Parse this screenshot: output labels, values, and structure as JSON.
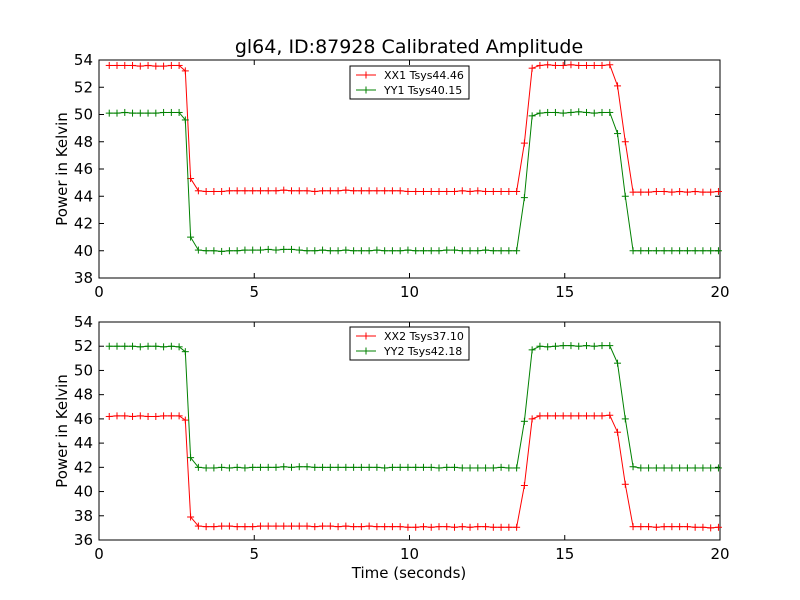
{
  "figure": {
    "title": "gl64, ID:87928 Calibrated Amplitude",
    "xlabel": "Time (seconds)"
  },
  "chart_data": [
    {
      "type": "line",
      "ylabel": "Power in Kelvin",
      "xlim": [
        0,
        20
      ],
      "ylim": [
        38,
        54
      ],
      "xticks": [
        "0",
        "5",
        "10",
        "15",
        "20"
      ],
      "yticks": [
        "38",
        "40",
        "42",
        "44",
        "46",
        "48",
        "50",
        "52",
        "54"
      ],
      "legend_position": "top-center",
      "x": [
        0.33,
        0.58,
        0.83,
        1.08,
        1.33,
        1.58,
        1.83,
        2.08,
        2.33,
        2.58,
        2.78,
        2.95,
        3.2,
        3.45,
        3.7,
        3.95,
        4.2,
        4.45,
        4.7,
        4.95,
        5.2,
        5.45,
        5.7,
        5.95,
        6.2,
        6.45,
        6.7,
        6.95,
        7.2,
        7.45,
        7.7,
        7.95,
        8.2,
        8.45,
        8.7,
        8.95,
        9.2,
        9.45,
        9.7,
        9.95,
        10.2,
        10.45,
        10.7,
        10.95,
        11.2,
        11.45,
        11.7,
        11.95,
        12.2,
        12.45,
        12.7,
        12.95,
        13.2,
        13.45,
        13.7,
        13.95,
        14.2,
        14.45,
        14.7,
        14.95,
        15.2,
        15.45,
        15.7,
        15.95,
        16.2,
        16.45,
        16.7,
        16.95,
        17.2,
        17.45,
        17.7,
        17.95,
        18.2,
        18.45,
        18.7,
        18.95,
        19.2,
        19.45,
        19.7,
        19.95
      ],
      "series": [
        {
          "name": "XX1 Tsys44.46",
          "color": "#ff0000",
          "values": [
            53.6,
            53.6,
            53.6,
            53.6,
            53.55,
            53.6,
            53.55,
            53.55,
            53.6,
            53.6,
            53.2,
            45.3,
            44.4,
            44.35,
            44.35,
            44.35,
            44.4,
            44.4,
            44.4,
            44.4,
            44.4,
            44.4,
            44.4,
            44.45,
            44.4,
            44.4,
            44.4,
            44.35,
            44.4,
            44.4,
            44.4,
            44.45,
            44.4,
            44.4,
            44.4,
            44.4,
            44.4,
            44.4,
            44.4,
            44.35,
            44.35,
            44.35,
            44.35,
            44.35,
            44.35,
            44.35,
            44.4,
            44.35,
            44.4,
            44.35,
            44.35,
            44.35,
            44.35,
            44.35,
            47.9,
            53.4,
            53.6,
            53.65,
            53.6,
            53.6,
            53.65,
            53.6,
            53.6,
            53.6,
            53.6,
            53.65,
            52.1,
            48.0,
            44.3,
            44.3,
            44.3,
            44.35,
            44.35,
            44.3,
            44.35,
            44.3,
            44.35,
            44.3,
            44.3,
            44.35
          ]
        },
        {
          "name": "YY1 Tsys40.15",
          "color": "#008000",
          "values": [
            50.1,
            50.1,
            50.15,
            50.1,
            50.1,
            50.1,
            50.1,
            50.15,
            50.15,
            50.15,
            49.6,
            41.0,
            40.05,
            40.0,
            40.0,
            39.95,
            40.0,
            40.0,
            40.05,
            40.05,
            40.05,
            40.1,
            40.05,
            40.1,
            40.1,
            40.05,
            40.0,
            40.0,
            40.05,
            40.0,
            40.0,
            40.05,
            40.0,
            40.0,
            40.0,
            40.05,
            40.0,
            40.0,
            40.0,
            40.05,
            40.0,
            40.0,
            40.0,
            40.0,
            40.05,
            40.05,
            40.0,
            40.0,
            40.0,
            40.05,
            40.0,
            40.0,
            40.0,
            40.0,
            43.9,
            49.9,
            50.1,
            50.15,
            50.15,
            50.1,
            50.15,
            50.2,
            50.15,
            50.1,
            50.15,
            50.15,
            48.6,
            44.0,
            40.0,
            40.0,
            40.0,
            40.0,
            40.0,
            40.0,
            40.0,
            40.0,
            40.0,
            40.0,
            40.0,
            40.0
          ]
        }
      ]
    },
    {
      "type": "line",
      "ylabel": "Power in Kelvin",
      "xlim": [
        0,
        20
      ],
      "ylim": [
        36,
        54
      ],
      "xticks": [
        "0",
        "5",
        "10",
        "15",
        "20"
      ],
      "yticks": [
        "36",
        "38",
        "40",
        "42",
        "44",
        "46",
        "48",
        "50",
        "52",
        "54"
      ],
      "legend_position": "top-center",
      "x": [
        0.33,
        0.58,
        0.83,
        1.08,
        1.33,
        1.58,
        1.83,
        2.08,
        2.33,
        2.58,
        2.78,
        2.95,
        3.2,
        3.45,
        3.7,
        3.95,
        4.2,
        4.45,
        4.7,
        4.95,
        5.2,
        5.45,
        5.7,
        5.95,
        6.2,
        6.45,
        6.7,
        6.95,
        7.2,
        7.45,
        7.7,
        7.95,
        8.2,
        8.45,
        8.7,
        8.95,
        9.2,
        9.45,
        9.7,
        9.95,
        10.2,
        10.45,
        10.7,
        10.95,
        11.2,
        11.45,
        11.7,
        11.95,
        12.2,
        12.45,
        12.7,
        12.95,
        13.2,
        13.45,
        13.7,
        13.95,
        14.2,
        14.45,
        14.7,
        14.95,
        15.2,
        15.45,
        15.7,
        15.95,
        16.2,
        16.45,
        16.7,
        16.95,
        17.2,
        17.45,
        17.7,
        17.95,
        18.2,
        18.45,
        18.7,
        18.95,
        19.2,
        19.45,
        19.7,
        19.95
      ],
      "series": [
        {
          "name": "XX2 Tsys37.10",
          "color": "#ff0000",
          "values": [
            46.2,
            46.25,
            46.25,
            46.2,
            46.25,
            46.2,
            46.2,
            46.25,
            46.25,
            46.25,
            45.9,
            37.9,
            37.15,
            37.1,
            37.1,
            37.15,
            37.15,
            37.1,
            37.1,
            37.1,
            37.15,
            37.15,
            37.15,
            37.15,
            37.15,
            37.15,
            37.15,
            37.1,
            37.15,
            37.15,
            37.1,
            37.15,
            37.1,
            37.1,
            37.15,
            37.1,
            37.1,
            37.1,
            37.1,
            37.05,
            37.05,
            37.1,
            37.05,
            37.1,
            37.1,
            37.05,
            37.1,
            37.05,
            37.1,
            37.1,
            37.05,
            37.05,
            37.05,
            37.05,
            40.5,
            46.0,
            46.25,
            46.25,
            46.25,
            46.25,
            46.25,
            46.25,
            46.25,
            46.25,
            46.25,
            46.3,
            44.9,
            40.6,
            37.1,
            37.1,
            37.1,
            37.05,
            37.1,
            37.1,
            37.1,
            37.1,
            37.05,
            37.05,
            37.0,
            37.05
          ]
        },
        {
          "name": "YY2 Tsys42.18",
          "color": "#008000",
          "values": [
            52.0,
            52.0,
            52.0,
            52.0,
            51.95,
            52.0,
            52.0,
            51.95,
            52.0,
            51.95,
            51.55,
            42.8,
            42.0,
            41.95,
            41.95,
            42.0,
            41.95,
            42.0,
            41.95,
            42.0,
            42.0,
            42.0,
            42.0,
            42.05,
            42.0,
            42.05,
            42.05,
            42.0,
            42.0,
            42.0,
            42.0,
            42.0,
            42.0,
            42.0,
            42.0,
            42.0,
            41.95,
            42.0,
            42.0,
            42.0,
            42.0,
            42.0,
            42.0,
            41.95,
            42.0,
            42.0,
            41.95,
            41.95,
            41.95,
            41.95,
            41.95,
            42.0,
            41.95,
            41.95,
            45.8,
            51.7,
            52.0,
            51.95,
            52.0,
            52.05,
            52.05,
            52.0,
            52.05,
            52.0,
            52.05,
            52.05,
            50.6,
            46.0,
            42.05,
            41.95,
            41.95,
            41.95,
            41.95,
            41.95,
            41.95,
            41.95,
            41.95,
            41.95,
            41.95,
            41.95
          ]
        }
      ]
    }
  ]
}
